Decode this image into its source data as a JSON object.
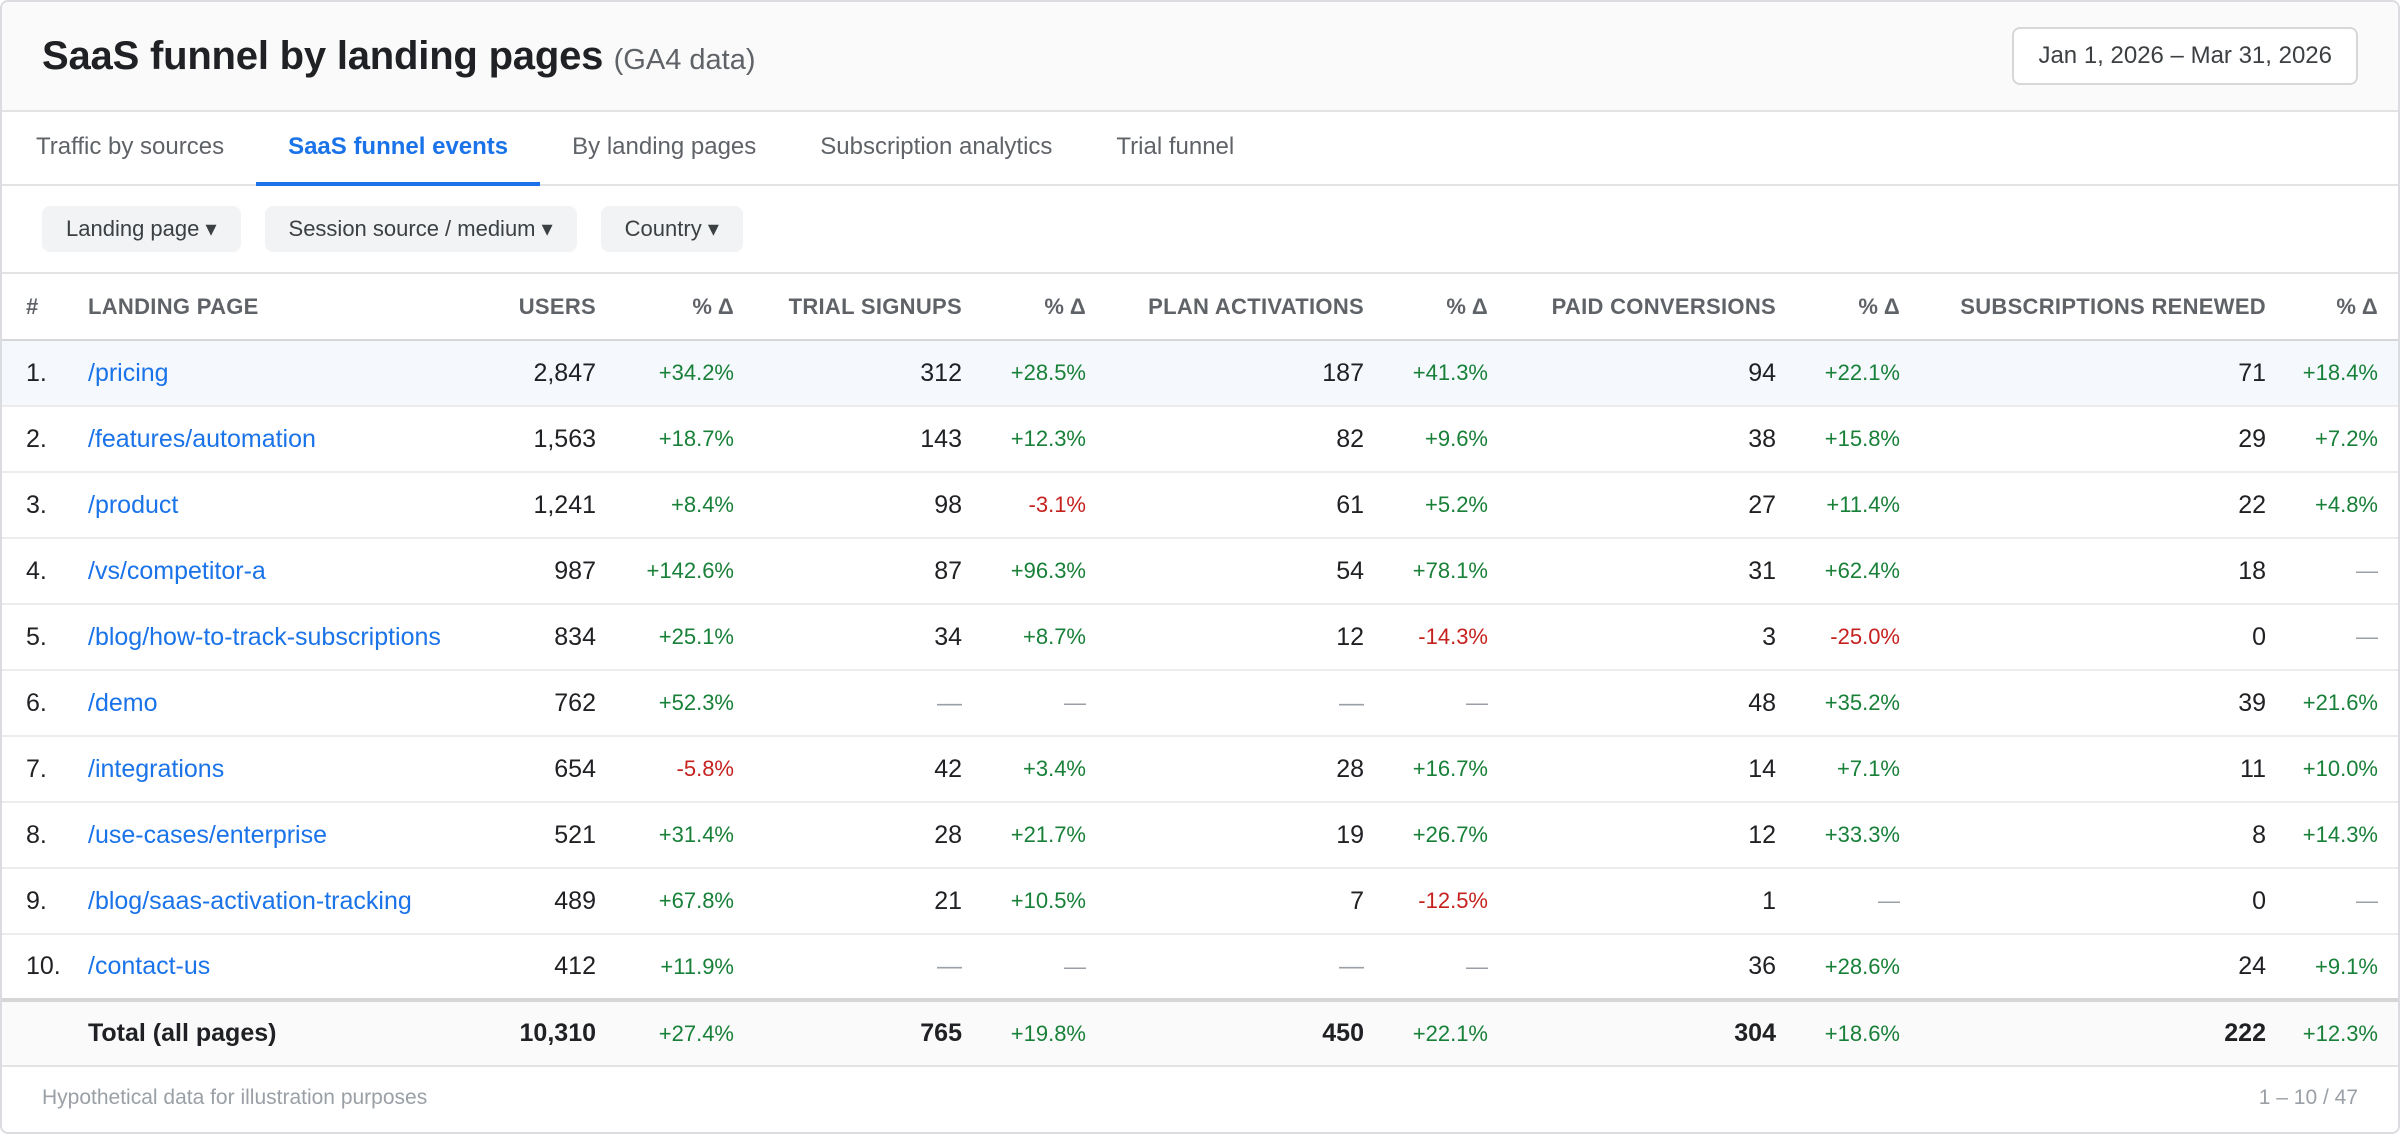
{
  "header": {
    "title": "SaaS funnel by landing pages",
    "subtitle": "(GA4 data)",
    "date_range": "Jan 1, 2026 – Mar 31, 2026"
  },
  "tabs": [
    {
      "label": "Traffic by sources",
      "active": false
    },
    {
      "label": "SaaS funnel events",
      "active": true
    },
    {
      "label": "By landing pages",
      "active": false
    },
    {
      "label": "Subscription analytics",
      "active": false
    },
    {
      "label": "Trial funnel",
      "active": false
    }
  ],
  "filters": [
    {
      "label": "Landing page ▾"
    },
    {
      "label": "Session source / medium ▾"
    },
    {
      "label": "Country ▾"
    }
  ],
  "columns": [
    "#",
    "Landing page",
    "Users",
    "% Δ",
    "Trial signups",
    "% Δ",
    "Plan activations",
    "% Δ",
    "Paid conversions",
    "% Δ",
    "Subscriptions renewed",
    "% Δ"
  ],
  "rows": [
    {
      "idx": "1.",
      "page": "/pricing",
      "users": "2,847",
      "users_d": "+34.2%",
      "trials": "312",
      "trials_d": "+28.5%",
      "plans": "187",
      "plans_d": "+41.3%",
      "paid": "94",
      "paid_d": "+22.1%",
      "renew": "71",
      "renew_d": "+18.4%"
    },
    {
      "idx": "2.",
      "page": "/features/automation",
      "users": "1,563",
      "users_d": "+18.7%",
      "trials": "143",
      "trials_d": "+12.3%",
      "plans": "82",
      "plans_d": "+9.6%",
      "paid": "38",
      "paid_d": "+15.8%",
      "renew": "29",
      "renew_d": "+7.2%"
    },
    {
      "idx": "3.",
      "page": "/product",
      "users": "1,241",
      "users_d": "+8.4%",
      "trials": "98",
      "trials_d": "-3.1%",
      "plans": "61",
      "plans_d": "+5.2%",
      "paid": "27",
      "paid_d": "+11.4%",
      "renew": "22",
      "renew_d": "+4.8%"
    },
    {
      "idx": "4.",
      "page": "/vs/competitor-a",
      "users": "987",
      "users_d": "+142.6%",
      "trials": "87",
      "trials_d": "+96.3%",
      "plans": "54",
      "plans_d": "+78.1%",
      "paid": "31",
      "paid_d": "+62.4%",
      "renew": "18",
      "renew_d": "—"
    },
    {
      "idx": "5.",
      "page": "/blog/how-to-track-subscriptions",
      "users": "834",
      "users_d": "+25.1%",
      "trials": "34",
      "trials_d": "+8.7%",
      "plans": "12",
      "plans_d": "-14.3%",
      "paid": "3",
      "paid_d": "-25.0%",
      "renew": "0",
      "renew_d": "—"
    },
    {
      "idx": "6.",
      "page": "/demo",
      "users": "762",
      "users_d": "+52.3%",
      "trials": "—",
      "trials_d": "—",
      "plans": "—",
      "plans_d": "—",
      "paid": "48",
      "paid_d": "+35.2%",
      "renew": "39",
      "renew_d": "+21.6%"
    },
    {
      "idx": "7.",
      "page": "/integrations",
      "users": "654",
      "users_d": "-5.8%",
      "trials": "42",
      "trials_d": "+3.4%",
      "plans": "28",
      "plans_d": "+16.7%",
      "paid": "14",
      "paid_d": "+7.1%",
      "renew": "11",
      "renew_d": "+10.0%"
    },
    {
      "idx": "8.",
      "page": "/use-cases/enterprise",
      "users": "521",
      "users_d": "+31.4%",
      "trials": "28",
      "trials_d": "+21.7%",
      "plans": "19",
      "plans_d": "+26.7%",
      "paid": "12",
      "paid_d": "+33.3%",
      "renew": "8",
      "renew_d": "+14.3%"
    },
    {
      "idx": "9.",
      "page": "/blog/saas-activation-tracking",
      "users": "489",
      "users_d": "+67.8%",
      "trials": "21",
      "trials_d": "+10.5%",
      "plans": "7",
      "plans_d": "-12.5%",
      "paid": "1",
      "paid_d": "—",
      "renew": "0",
      "renew_d": "—"
    },
    {
      "idx": "10.",
      "page": "/contact-us",
      "users": "412",
      "users_d": "+11.9%",
      "trials": "—",
      "trials_d": "—",
      "plans": "—",
      "plans_d": "—",
      "paid": "36",
      "paid_d": "+28.6%",
      "renew": "24",
      "renew_d": "+9.1%"
    }
  ],
  "total": {
    "label": "Total (all pages)",
    "users": "10,310",
    "users_d": "+27.4%",
    "trials": "765",
    "trials_d": "+19.8%",
    "plans": "450",
    "plans_d": "+22.1%",
    "paid": "304",
    "paid_d": "+18.6%",
    "renew": "222",
    "renew_d": "+12.3%"
  },
  "footer": {
    "note": "Hypothetical data for illustration purposes",
    "pagination": "1 – 10 / 47"
  },
  "colors": {
    "accent": "#1a73e8",
    "positive": "#188038",
    "negative": "#c5221f",
    "neutral": "#9aa0a6"
  }
}
